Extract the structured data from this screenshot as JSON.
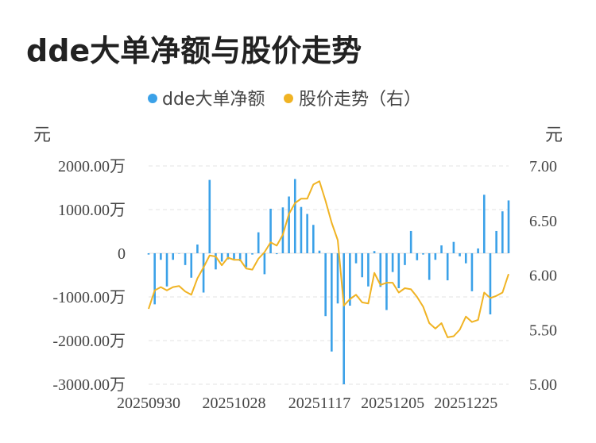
{
  "title": "dde大单净额与股价走势",
  "chart_data": {
    "type": "bar+line",
    "legend": [
      "dde大单净额",
      "股价走势（右）"
    ],
    "legend_position": "top-center",
    "left_unit": "元",
    "right_unit": "元",
    "y_left_ticks": [
      "2000.00万",
      "1000.00万",
      "0",
      "-1000.00万",
      "-2000.00万",
      "-3000.00万"
    ],
    "y_left_range": [
      -3000,
      2000
    ],
    "y_right_ticks": [
      "7.00",
      "6.50",
      "6.00",
      "5.50",
      "5.00"
    ],
    "y_right_range": [
      5.0,
      7.0
    ],
    "x_ticks": [
      "20250930",
      "20251028",
      "20251117",
      "20251205",
      "20251225"
    ],
    "x_tick_index": [
      0,
      14,
      28,
      40,
      52
    ],
    "grid": true,
    "colors": {
      "bar": "#3ba1e8",
      "line": "#f0b323",
      "grid": "#e3e3e3"
    },
    "series": [
      {
        "name": "dde大单净额",
        "type": "bar",
        "axis": "left",
        "values": [
          -30,
          -1170,
          -150,
          -760,
          -150,
          0,
          -270,
          -560,
          200,
          -900,
          1680,
          -370,
          -190,
          -140,
          -130,
          -180,
          -320,
          -30,
          480,
          -480,
          1020,
          -20,
          1050,
          1300,
          1700,
          1060,
          900,
          650,
          60,
          -1440,
          -2250,
          -1150,
          -3000,
          -1200,
          -230,
          -550,
          -760,
          50,
          -770,
          -1300,
          -430,
          -800,
          -270,
          510,
          -160,
          -30,
          -610,
          -150,
          180,
          -620,
          260,
          -70,
          -230,
          -870,
          110,
          1340,
          -1400,
          510,
          960,
          1210
        ]
      },
      {
        "name": "股价走势（右）",
        "type": "line",
        "axis": "right",
        "values": [
          5.69,
          5.86,
          5.89,
          5.86,
          5.89,
          5.9,
          5.85,
          5.82,
          5.97,
          6.07,
          6.18,
          6.17,
          6.09,
          6.16,
          6.14,
          6.14,
          6.06,
          6.05,
          6.15,
          6.21,
          6.3,
          6.27,
          6.37,
          6.56,
          6.66,
          6.7,
          6.7,
          6.83,
          6.86,
          6.68,
          6.48,
          6.32,
          5.72,
          5.78,
          5.82,
          5.75,
          5.74,
          6.02,
          5.91,
          5.93,
          5.93,
          5.84,
          5.88,
          5.87,
          5.8,
          5.71,
          5.56,
          5.51,
          5.56,
          5.43,
          5.44,
          5.5,
          5.62,
          5.57,
          5.59,
          5.84,
          5.79,
          5.81,
          5.84,
          6.01
        ]
      }
    ]
  }
}
